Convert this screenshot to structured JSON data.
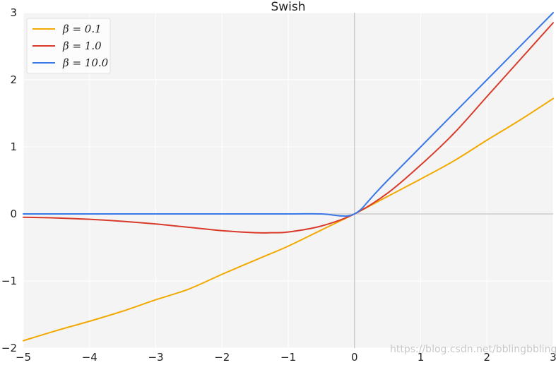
{
  "chart_data": {
    "type": "line",
    "title": "Swish",
    "xlabel": "",
    "ylabel": "",
    "xlim": [
      -5,
      3
    ],
    "ylim": [
      -2,
      3
    ],
    "x_ticks": [
      -5,
      -4,
      -3,
      -2,
      -1,
      0,
      1,
      2,
      3
    ],
    "y_ticks": [
      -2,
      -1,
      0,
      1,
      2,
      3
    ],
    "x_tick_labels": [
      "−5",
      "−4",
      "−3",
      "−2",
      "−1",
      "0",
      "1",
      "2",
      "3"
    ],
    "y_tick_labels": [
      "−2",
      "−1",
      "0",
      "1",
      "2",
      "3"
    ],
    "grid": true,
    "legend_position": "top-left",
    "background_color": "#f4f4f4",
    "grid_color": "#ffffff",
    "zero_line_color": "#cccccc",
    "series": [
      {
        "name": "β = 0.1",
        "color": "#f2a900",
        "x": [
          -5,
          -4.5,
          -4,
          -3.5,
          -3,
          -2.5,
          -2,
          -1.5,
          -1,
          -0.5,
          0,
          0.5,
          1,
          1.5,
          2,
          2.5,
          3
        ],
        "y": [
          -1.89,
          -1.74,
          -1.6,
          -1.45,
          -1.28,
          -1.12,
          -0.9,
          -0.69,
          -0.48,
          -0.24,
          0,
          0.26,
          0.52,
          0.79,
          1.1,
          1.4,
          1.72
        ]
      },
      {
        "name": "β = 1.0",
        "color": "#d93a2b",
        "x": [
          -5,
          -4.5,
          -4,
          -3.5,
          -3,
          -2.5,
          -2,
          -1.5,
          -1.25,
          -1,
          -0.5,
          0,
          0.5,
          1,
          1.5,
          2,
          2.5,
          3
        ],
        "y": [
          -0.05,
          -0.06,
          -0.08,
          -0.11,
          -0.15,
          -0.2,
          -0.25,
          -0.28,
          -0.28,
          -0.27,
          -0.18,
          0,
          0.31,
          0.73,
          1.2,
          1.75,
          2.3,
          2.85
        ]
      },
      {
        "name": "β = 10.0",
        "color": "#3b78e7",
        "x": [
          -5,
          -4,
          -3,
          -2,
          -1,
          -0.5,
          -0.3,
          -0.2,
          -0.1,
          0,
          0.1,
          0.2,
          0.3,
          0.5,
          1,
          2,
          3
        ],
        "y": [
          0,
          0,
          0,
          0,
          0,
          0,
          -0.02,
          -0.03,
          -0.03,
          0,
          0.07,
          0.18,
          0.29,
          0.5,
          1,
          2,
          3
        ]
      }
    ]
  },
  "legend": {
    "items": [
      "β = 0.1",
      "β = 1.0",
      "β = 10.0"
    ]
  },
  "watermark": "https://blog.csdn.net/bblingbbling"
}
